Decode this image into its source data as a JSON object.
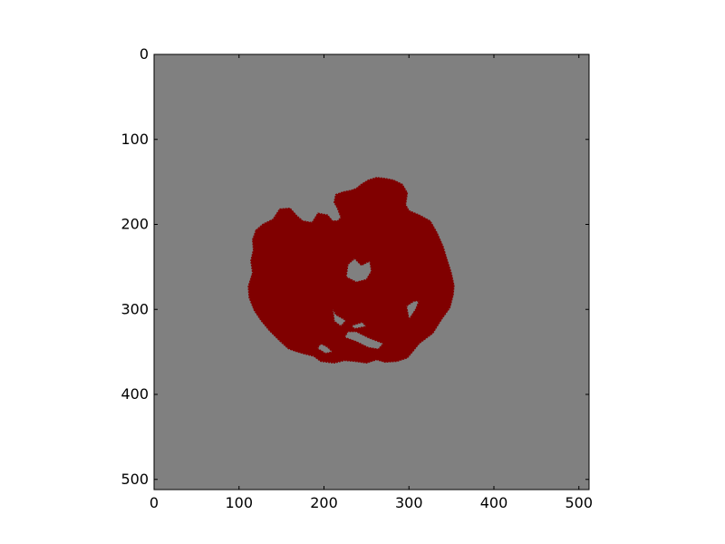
{
  "chart_data": {
    "type": "heatmap",
    "title": "",
    "xlabel": "",
    "ylabel": "",
    "xlim": [
      0,
      512
    ],
    "ylim": [
      512,
      0
    ],
    "x_ticks": [
      0,
      100,
      200,
      300,
      400,
      500
    ],
    "y_ticks": [
      0,
      100,
      200,
      300,
      400,
      500
    ],
    "x_tick_labels": [
      "0",
      "100",
      "200",
      "300",
      "400",
      "500"
    ],
    "y_tick_labels": [
      "0",
      "100",
      "200",
      "300",
      "400",
      "500"
    ],
    "grid": false,
    "legend": "none",
    "colors": {
      "background": "#808080",
      "region": "#800000"
    },
    "region_outline": [
      [
        120,
        207
      ],
      [
        128,
        200
      ],
      [
        140,
        194
      ],
      [
        148,
        182
      ],
      [
        160,
        181
      ],
      [
        168,
        190
      ],
      [
        175,
        196
      ],
      [
        186,
        198
      ],
      [
        193,
        187
      ],
      [
        204,
        189
      ],
      [
        210,
        196
      ],
      [
        216,
        196
      ],
      [
        220,
        192
      ],
      [
        216,
        181
      ],
      [
        212,
        174
      ],
      [
        214,
        165
      ],
      [
        222,
        162
      ],
      [
        232,
        160
      ],
      [
        238,
        158
      ],
      [
        244,
        153
      ],
      [
        252,
        148
      ],
      [
        262,
        145
      ],
      [
        272,
        146
      ],
      [
        282,
        148
      ],
      [
        292,
        153
      ],
      [
        298,
        163
      ],
      [
        296,
        177
      ],
      [
        300,
        184
      ],
      [
        312,
        189
      ],
      [
        325,
        196
      ],
      [
        333,
        210
      ],
      [
        340,
        226
      ],
      [
        345,
        242
      ],
      [
        350,
        258
      ],
      [
        353,
        272
      ],
      [
        352,
        283
      ],
      [
        348,
        298
      ],
      [
        338,
        312
      ],
      [
        328,
        328
      ],
      [
        312,
        340
      ],
      [
        304,
        350
      ],
      [
        298,
        357
      ],
      [
        286,
        361
      ],
      [
        272,
        362
      ],
      [
        262,
        359
      ],
      [
        250,
        363
      ],
      [
        236,
        361
      ],
      [
        224,
        360
      ],
      [
        212,
        363
      ],
      [
        196,
        361
      ],
      [
        188,
        355
      ],
      [
        176,
        352
      ],
      [
        166,
        349
      ],
      [
        158,
        346
      ],
      [
        148,
        337
      ],
      [
        136,
        325
      ],
      [
        126,
        313
      ],
      [
        118,
        301
      ],
      [
        112,
        286
      ],
      [
        111,
        273
      ],
      [
        116,
        257
      ],
      [
        114,
        243
      ],
      [
        117,
        230
      ],
      [
        116,
        218
      ]
    ],
    "holes": [
      [
        [
          226,
          262
        ],
        [
          238,
          268
        ],
        [
          250,
          265
        ],
        [
          256,
          255
        ],
        [
          254,
          243
        ],
        [
          244,
          248
        ],
        [
          236,
          240
        ],
        [
          228,
          247
        ]
      ],
      [
        [
          306,
          290
        ],
        [
          312,
          290
        ],
        [
          308,
          300
        ],
        [
          300,
          312
        ],
        [
          297,
          296
        ]
      ],
      [
        [
          224,
          333
        ],
        [
          238,
          338
        ],
        [
          252,
          345
        ],
        [
          264,
          347
        ],
        [
          270,
          340
        ],
        [
          252,
          333
        ],
        [
          238,
          326
        ],
        [
          228,
          326
        ]
      ],
      [
        [
          210,
          298
        ],
        [
          214,
          306
        ],
        [
          226,
          313
        ],
        [
          220,
          320
        ],
        [
          212,
          314
        ]
      ],
      [
        [
          232,
          319
        ],
        [
          245,
          315
        ],
        [
          250,
          320
        ],
        [
          236,
          323
        ]
      ],
      [
        [
          196,
          340
        ],
        [
          204,
          344
        ],
        [
          210,
          350
        ],
        [
          202,
          352
        ],
        [
          192,
          346
        ]
      ]
    ]
  }
}
